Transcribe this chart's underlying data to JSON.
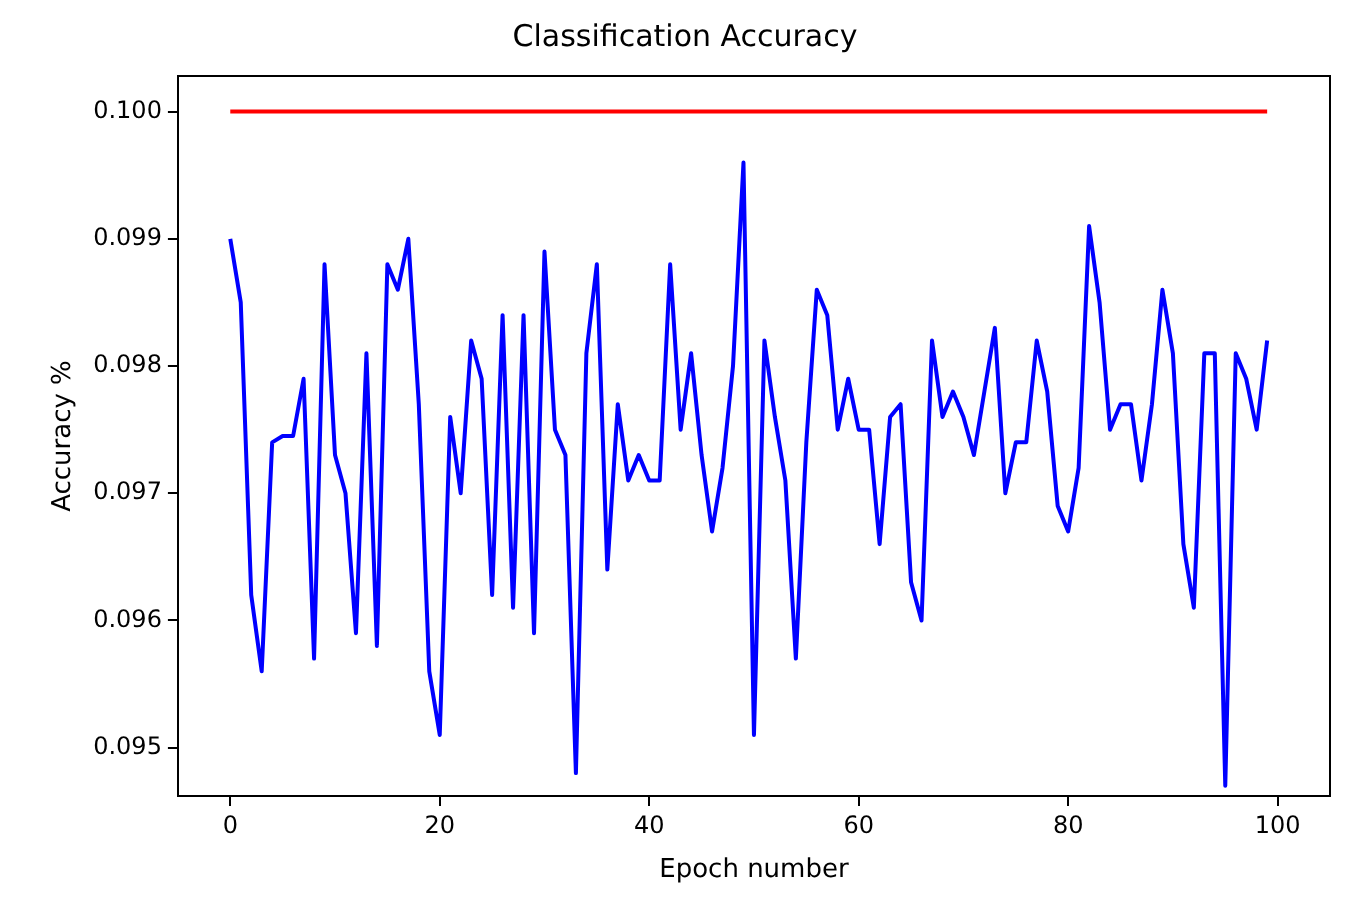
{
  "chart_data": {
    "type": "line",
    "title": "Classification Accuracy",
    "xlabel": "Epoch number",
    "ylabel": "Accuracy %",
    "x": [
      0,
      1,
      2,
      3,
      4,
      5,
      6,
      7,
      8,
      9,
      10,
      11,
      12,
      13,
      14,
      15,
      16,
      17,
      18,
      19,
      20,
      21,
      22,
      23,
      24,
      25,
      26,
      27,
      28,
      29,
      30,
      31,
      32,
      33,
      34,
      35,
      36,
      37,
      38,
      39,
      40,
      41,
      42,
      43,
      44,
      45,
      46,
      47,
      48,
      49,
      50,
      51,
      52,
      53,
      54,
      55,
      56,
      57,
      58,
      59,
      60,
      61,
      62,
      63,
      64,
      65,
      66,
      67,
      68,
      69,
      70,
      71,
      72,
      73,
      74,
      75,
      76,
      77,
      78,
      79,
      80,
      81,
      82,
      83,
      84,
      85,
      86,
      87,
      88,
      89,
      90,
      91,
      92,
      93,
      94,
      95,
      96,
      97,
      98,
      99
    ],
    "series": [
      {
        "color": "#ff0000",
        "values": [
          0.1,
          0.1,
          0.1,
          0.1,
          0.1,
          0.1,
          0.1,
          0.1,
          0.1,
          0.1,
          0.1,
          0.1,
          0.1,
          0.1,
          0.1,
          0.1,
          0.1,
          0.1,
          0.1,
          0.1,
          0.1,
          0.1,
          0.1,
          0.1,
          0.1,
          0.1,
          0.1,
          0.1,
          0.1,
          0.1,
          0.1,
          0.1,
          0.1,
          0.1,
          0.1,
          0.1,
          0.1,
          0.1,
          0.1,
          0.1,
          0.1,
          0.1,
          0.1,
          0.1,
          0.1,
          0.1,
          0.1,
          0.1,
          0.1,
          0.1,
          0.1,
          0.1,
          0.1,
          0.1,
          0.1,
          0.1,
          0.1,
          0.1,
          0.1,
          0.1,
          0.1,
          0.1,
          0.1,
          0.1,
          0.1,
          0.1,
          0.1,
          0.1,
          0.1,
          0.1,
          0.1,
          0.1,
          0.1,
          0.1,
          0.1,
          0.1,
          0.1,
          0.1,
          0.1,
          0.1,
          0.1,
          0.1,
          0.1,
          0.1,
          0.1,
          0.1,
          0.1,
          0.1,
          0.1,
          0.1,
          0.1,
          0.1,
          0.1,
          0.1,
          0.1,
          0.1,
          0.1,
          0.1,
          0.1,
          0.1
        ]
      },
      {
        "color": "#0000ff",
        "values": [
          0.099,
          0.0985,
          0.0962,
          0.0956,
          0.0974,
          0.09745,
          0.09745,
          0.0979,
          0.0957,
          0.0988,
          0.0973,
          0.097,
          0.0959,
          0.0981,
          0.0958,
          0.0988,
          0.0986,
          0.099,
          0.0977,
          0.0956,
          0.0951,
          0.0976,
          0.097,
          0.0982,
          0.0979,
          0.0962,
          0.0984,
          0.0961,
          0.0984,
          0.0959,
          0.0989,
          0.0975,
          0.0973,
          0.0948,
          0.0981,
          0.0988,
          0.0964,
          0.0977,
          0.0971,
          0.0973,
          0.0971,
          0.0971,
          0.0988,
          0.0975,
          0.0981,
          0.0973,
          0.0967,
          0.0972,
          0.098,
          0.0996,
          0.0951,
          0.0982,
          0.0976,
          0.0971,
          0.0957,
          0.0974,
          0.0986,
          0.0984,
          0.0975,
          0.0979,
          0.0975,
          0.0975,
          0.0966,
          0.0976,
          0.0977,
          0.0963,
          0.096,
          0.0982,
          0.0976,
          0.0978,
          0.0976,
          0.0973,
          0.0978,
          0.0983,
          0.097,
          0.0974,
          0.0974,
          0.0982,
          0.0978,
          0.0969,
          0.0967,
          0.0972,
          0.0991,
          0.0985,
          0.0975,
          0.0977,
          0.0977,
          0.0971,
          0.0977,
          0.0986,
          0.0981,
          0.0966,
          0.0961,
          0.0981,
          0.0981,
          0.0947,
          0.0981,
          0.0979,
          0.0975,
          0.0982
        ]
      }
    ],
    "xlim": [
      -5,
      105
    ],
    "xticks": [
      0,
      20,
      40,
      60,
      80,
      100
    ],
    "ylim": [
      0.09462,
      0.10028
    ],
    "yticks": [
      {
        "value": 0.095,
        "label": "0.095"
      },
      {
        "value": 0.096,
        "label": "0.096"
      },
      {
        "value": 0.097,
        "label": "0.097"
      },
      {
        "value": 0.098,
        "label": "0.098"
      },
      {
        "value": 0.099,
        "label": "0.099"
      },
      {
        "value": 0.1,
        "label": "0.100"
      }
    ],
    "grid": false,
    "legend": false,
    "marker": "none",
    "line_style": "solid"
  }
}
